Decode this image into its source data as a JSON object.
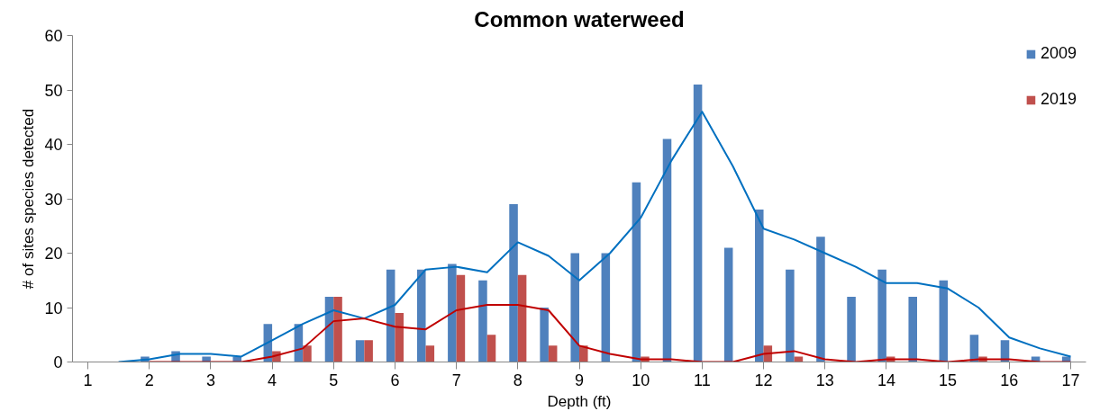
{
  "chart_data": {
    "type": "bar",
    "title": "Common waterweed",
    "xlabel": "Depth (ft)",
    "ylabel": "# of sites species detected",
    "x": [
      1,
      1.5,
      2,
      2.5,
      3,
      3.5,
      4,
      4.5,
      5,
      5.5,
      6,
      6.5,
      7,
      7.5,
      8,
      8.5,
      9,
      9.5,
      10,
      10.5,
      11,
      11.5,
      12,
      12.5,
      13,
      13.5,
      14,
      14.5,
      15,
      15.5,
      16,
      16.5,
      17
    ],
    "xlim": [
      0.75,
      17.25
    ],
    "xticks": [
      1,
      2,
      3,
      4,
      5,
      6,
      7,
      8,
      9,
      10,
      11,
      12,
      13,
      14,
      15,
      16,
      17
    ],
    "series": [
      {
        "name": "2009",
        "color": "#4f81bd",
        "values": [
          0,
          0,
          1,
          2,
          1,
          1,
          7,
          7,
          12,
          4,
          17,
          17,
          18,
          15,
          29,
          10,
          20,
          20,
          33,
          41,
          51,
          21,
          28,
          17,
          23,
          12,
          17,
          12,
          15,
          5,
          4,
          1,
          1
        ]
      },
      {
        "name": "2019",
        "color": "#c0504d",
        "values": [
          0,
          0,
          0,
          0,
          0,
          0,
          2,
          3,
          12,
          4,
          9,
          3,
          16,
          5,
          16,
          3,
          3,
          0,
          1,
          0,
          0,
          0,
          3,
          1,
          0,
          0,
          1,
          0,
          0,
          1,
          0,
          0,
          0
        ]
      },
      {
        "type": "line",
        "color": "#0070c0",
        "values": [
          null,
          0,
          0.5,
          1.5,
          1.5,
          1,
          4,
          7,
          9.5,
          8,
          10.5,
          17,
          17.5,
          16.5,
          22,
          19.5,
          15,
          20,
          26.5,
          37,
          46,
          36,
          24.5,
          22.5,
          20,
          17.5,
          14.5,
          14.5,
          13.5,
          10,
          4.5,
          2.5,
          1
        ]
      },
      {
        "type": "line",
        "color": "#c00000",
        "values": [
          null,
          null,
          0,
          0,
          0,
          0,
          1,
          2.5,
          7.5,
          8,
          6.5,
          6,
          9.5,
          10.5,
          10.5,
          9.5,
          3,
          1.5,
          0.5,
          0.5,
          0,
          0,
          1.5,
          2,
          0.5,
          0,
          0.5,
          0.5,
          0,
          0.5,
          0.5,
          0,
          0
        ]
      }
    ],
    "ylim": [
      0,
      60
    ],
    "yticks": [
      0,
      10,
      20,
      30,
      40,
      50,
      60
    ],
    "grid": false,
    "legend": "top right"
  }
}
